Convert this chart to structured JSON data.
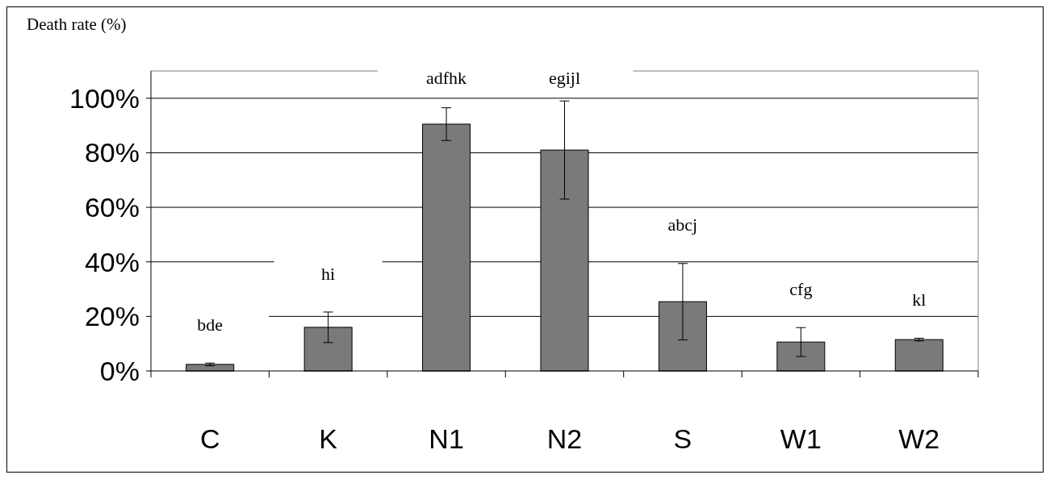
{
  "chart_data": {
    "type": "bar",
    "ylabel": "Death rate (%)",
    "categories": [
      "C",
      "K",
      "N1",
      "N2",
      "S",
      "W1",
      "W2"
    ],
    "values": [
      2.4,
      16,
      90.5,
      81,
      25.4,
      10.6,
      11.5
    ],
    "errors": [
      0.5,
      5.6,
      6,
      18,
      14,
      5.3,
      0.5
    ],
    "color": "#7a7a7a",
    "ylim": [
      0,
      110
    ],
    "yticks": [
      {
        "value": 0,
        "label": "0%"
      },
      {
        "value": 20,
        "label": "20%"
      },
      {
        "value": 40,
        "label": "40%"
      },
      {
        "value": 60,
        "label": "60%"
      },
      {
        "value": 80,
        "label": "80%"
      },
      {
        "value": 100,
        "label": "100%"
      }
    ],
    "grid": "y",
    "annotations": [
      "bde",
      "hi",
      "adfhk",
      "egijl",
      "abcj",
      "cfg",
      "kl"
    ]
  }
}
